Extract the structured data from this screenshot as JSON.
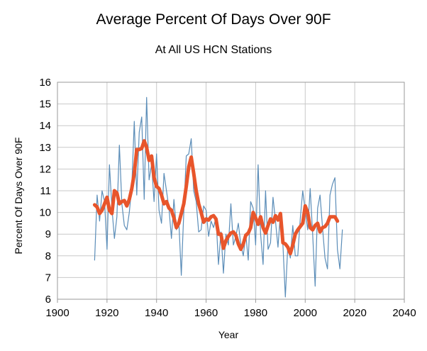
{
  "chart_data": {
    "type": "line",
    "title": "Average Percent Of Days Over 90F",
    "subtitle": "At All US HCN Stations",
    "xlabel": "Year",
    "ylabel": "Percent Of Days Over 90F",
    "xlim": [
      1900,
      2040
    ],
    "ylim": [
      6,
      16
    ],
    "x_ticks": [
      1900,
      1920,
      1940,
      1960,
      1980,
      2000,
      2020,
      2040
    ],
    "y_ticks": [
      6,
      7,
      8,
      9,
      10,
      11,
      12,
      13,
      14,
      15,
      16
    ],
    "grid": true,
    "legend": "none",
    "series": [
      {
        "color": "#5b8db8",
        "x": [
          1915,
          1916,
          1917,
          1918,
          1919,
          1920,
          1921,
          1922,
          1923,
          1924,
          1925,
          1926,
          1927,
          1928,
          1929,
          1930,
          1931,
          1932,
          1933,
          1934,
          1935,
          1936,
          1937,
          1938,
          1939,
          1940,
          1941,
          1942,
          1943,
          1944,
          1945,
          1946,
          1947,
          1948,
          1949,
          1950,
          1951,
          1952,
          1953,
          1954,
          1955,
          1956,
          1957,
          1958,
          1959,
          1960,
          1961,
          1962,
          1963,
          1964,
          1965,
          1966,
          1967,
          1968,
          1969,
          1970,
          1971,
          1972,
          1973,
          1974,
          1975,
          1976,
          1977,
          1978,
          1979,
          1980,
          1981,
          1982,
          1983,
          1984,
          1985,
          1986,
          1987,
          1988,
          1989,
          1990,
          1991,
          1992,
          1993,
          1994,
          1995,
          1996,
          1997,
          1998,
          1999,
          2000,
          2001,
          2002,
          2003,
          2004,
          2005,
          2006,
          2007,
          2008,
          2009,
          2010,
          2011,
          2012,
          2013,
          2014,
          2015
        ],
        "y": [
          7.8,
          10.8,
          9.6,
          11.0,
          10.5,
          8.3,
          12.2,
          10.2,
          8.8,
          9.8,
          13.1,
          10.4,
          9.4,
          9.2,
          10.0,
          11.2,
          14.2,
          10.8,
          13.7,
          14.4,
          10.6,
          15.3,
          11.5,
          12.2,
          10.5,
          12.7,
          10.1,
          9.5,
          11.8,
          11.0,
          10.2,
          8.8,
          10.6,
          9.2,
          9.6,
          7.1,
          10.0,
          12.6,
          12.7,
          13.4,
          11.0,
          10.5,
          9.1,
          9.2,
          10.3,
          10.1,
          8.9,
          9.6,
          9.3,
          9.8,
          7.6,
          9.1,
          7.2,
          9.0,
          8.5,
          10.4,
          8.5,
          8.9,
          9.5,
          8.5,
          8.0,
          9.0,
          7.8,
          10.5,
          10.2,
          8.5,
          12.2,
          9.0,
          7.6,
          11.0,
          8.3,
          8.6,
          10.7,
          9.6,
          8.4,
          10.0,
          8.5,
          6.1,
          8.5,
          7.9,
          9.4,
          8.0,
          8.0,
          9.7,
          11.0,
          10.1,
          9.2,
          11.1,
          9.0,
          6.6,
          10.2,
          10.8,
          9.3,
          7.9,
          7.4,
          10.8,
          11.3,
          11.6,
          8.3,
          7.4,
          9.2
        ]
      },
      {
        "color": "#e8552b",
        "x": [
          1915,
          1916,
          1917,
          1918,
          1919,
          1920,
          1921,
          1922,
          1923,
          1924,
          1925,
          1926,
          1927,
          1928,
          1929,
          1930,
          1931,
          1932,
          1933,
          1934,
          1935,
          1936,
          1937,
          1938,
          1939,
          1940,
          1941,
          1942,
          1943,
          1944,
          1945,
          1946,
          1947,
          1948,
          1949,
          1950,
          1951,
          1952,
          1953,
          1954,
          1955,
          1956,
          1957,
          1958,
          1959,
          1960,
          1961,
          1962,
          1963,
          1964,
          1965,
          1966,
          1967,
          1968,
          1969,
          1970,
          1971,
          1972,
          1973,
          1974,
          1975,
          1976,
          1977,
          1978,
          1979,
          1980,
          1981,
          1982,
          1983,
          1984,
          1985,
          1986,
          1987,
          1988,
          1989,
          1990,
          1991,
          1992,
          1993,
          1994,
          1995,
          1996,
          1997,
          1998,
          1999,
          2000,
          2001,
          2002,
          2003,
          2004,
          2005,
          2006,
          2007,
          2008,
          2009,
          2010,
          2011,
          2012,
          2013
        ],
        "y": [
          10.35,
          10.25,
          9.95,
          10.1,
          10.4,
          10.7,
          10.1,
          9.95,
          11.0,
          10.9,
          10.4,
          10.5,
          10.55,
          10.3,
          10.6,
          11.1,
          11.8,
          12.9,
          12.9,
          12.95,
          13.3,
          13.0,
          12.4,
          12.6,
          11.6,
          11.2,
          11.1,
          10.8,
          10.4,
          10.5,
          10.2,
          10.1,
          9.75,
          9.3,
          9.5,
          9.95,
          10.4,
          11.2,
          12.1,
          12.55,
          11.8,
          11.0,
          10.4,
          10.0,
          9.55,
          9.7,
          9.65,
          9.8,
          9.85,
          9.7,
          9.0,
          9.0,
          8.35,
          8.7,
          8.9,
          9.05,
          9.1,
          8.95,
          8.55,
          8.3,
          8.55,
          8.95,
          9.05,
          9.3,
          10.0,
          9.75,
          9.45,
          9.8,
          9.3,
          9.05,
          9.4,
          9.7,
          9.55,
          9.85,
          9.65,
          9.95,
          8.6,
          8.55,
          8.4,
          8.1,
          8.5,
          9.0,
          9.2,
          9.35,
          9.5,
          10.3,
          10.0,
          9.3,
          9.2,
          9.4,
          9.5,
          9.1,
          9.3,
          9.35,
          9.5,
          9.8,
          9.8,
          9.8,
          9.6
        ]
      }
    ]
  }
}
